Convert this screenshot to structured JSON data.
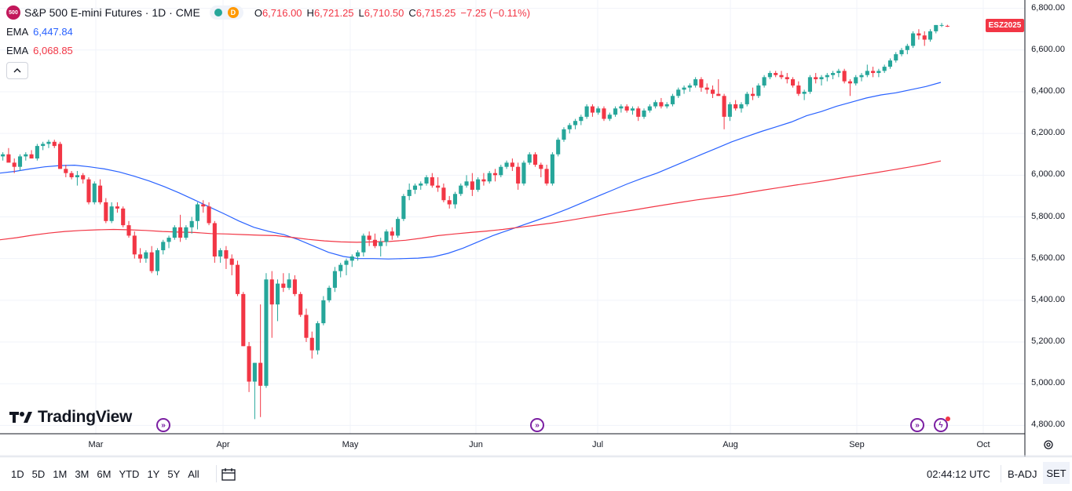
{
  "header": {
    "symbol_badge": "500",
    "title": "S&P 500 E-mini Futures · 1D · CME",
    "status_letter": "D",
    "ohlc": [
      {
        "key": "O",
        "value": "6,716.00"
      },
      {
        "key": "H",
        "value": "6,721.25"
      },
      {
        "key": "L",
        "value": "6,710.50"
      },
      {
        "key": "C",
        "value": "6,715.25"
      }
    ],
    "change": "−7.25 (−0.11%)"
  },
  "indicators": [
    {
      "name": "EMA",
      "value": "6,447.84",
      "color": "#2962ff"
    },
    {
      "name": "EMA",
      "value": "6,068.85",
      "color": "#f23645"
    }
  ],
  "collapse_icon": "chevron-up-icon",
  "contract_tag": "ESZ2025",
  "watermark": "TradingView",
  "colors": {
    "up": "#26a69a",
    "down": "#f23645",
    "ema_fast": "#2962ff",
    "ema_slow": "#f23645",
    "event": "#7b1fa2"
  },
  "chart_data": {
    "type": "candlestick",
    "title": "S&P 500 E-mini Futures · 1D · CME",
    "y_axis": {
      "ticks": [
        "6,800.00",
        "6,600.00",
        "6,400.00",
        "6,200.00",
        "6,000.00",
        "5,800.00",
        "5,600.00",
        "5,400.00",
        "5,200.00",
        "5,000.00",
        "4,800.00"
      ],
      "ylim": [
        4760,
        6840
      ]
    },
    "x_axis": {
      "months": [
        "Mar",
        "Apr",
        "May",
        "Jun",
        "Jul",
        "Aug",
        "Sep",
        "Oct"
      ]
    },
    "grid": true,
    "candles": [
      [
        6090,
        6110,
        6070,
        6100
      ],
      [
        6100,
        6130,
        6080,
        6060
      ],
      [
        6060,
        6080,
        6010,
        6040
      ],
      [
        6040,
        6100,
        6020,
        6090
      ],
      [
        6090,
        6110,
        6070,
        6100
      ],
      [
        6100,
        6120,
        6080,
        6080
      ],
      [
        6080,
        6150,
        6070,
        6140
      ],
      [
        6140,
        6160,
        6120,
        6150
      ],
      [
        6150,
        6170,
        6130,
        6160
      ],
      [
        6160,
        6170,
        6130,
        6140
      ],
      [
        6150,
        6160,
        6030,
        6030
      ],
      [
        6030,
        6050,
        5990,
        6010
      ],
      [
        6010,
        6020,
        5980,
        5990
      ],
      [
        5990,
        6020,
        5950,
        6000
      ],
      [
        6000,
        6010,
        5960,
        5980
      ],
      [
        5980,
        5990,
        5860,
        5870
      ],
      [
        5870,
        5970,
        5860,
        5960
      ],
      [
        5950,
        5980,
        5860,
        5870
      ],
      [
        5870,
        5890,
        5770,
        5780
      ],
      [
        5780,
        5870,
        5770,
        5850
      ],
      [
        5850,
        5870,
        5820,
        5840
      ],
      [
        5840,
        5850,
        5750,
        5760
      ],
      [
        5760,
        5780,
        5700,
        5710
      ],
      [
        5710,
        5730,
        5600,
        5620
      ],
      [
        5620,
        5650,
        5580,
        5600
      ],
      [
        5600,
        5640,
        5580,
        5630
      ],
      [
        5630,
        5660,
        5530,
        5540
      ],
      [
        5540,
        5650,
        5520,
        5640
      ],
      [
        5640,
        5690,
        5620,
        5680
      ],
      [
        5680,
        5710,
        5650,
        5700
      ],
      [
        5700,
        5760,
        5690,
        5750
      ],
      [
        5750,
        5810,
        5680,
        5700
      ],
      [
        5700,
        5760,
        5690,
        5750
      ],
      [
        5750,
        5800,
        5720,
        5780
      ],
      [
        5780,
        5870,
        5740,
        5860
      ],
      [
        5860,
        5880,
        5820,
        5850
      ],
      [
        5850,
        5870,
        5760,
        5770
      ],
      [
        5770,
        5780,
        5580,
        5610
      ],
      [
        5610,
        5650,
        5580,
        5640
      ],
      [
        5640,
        5660,
        5550,
        5600
      ],
      [
        5600,
        5620,
        5520,
        5570
      ],
      [
        5570,
        5590,
        5420,
        5430
      ],
      [
        5430,
        5440,
        5180,
        5180
      ],
      [
        5180,
        5200,
        4960,
        5010
      ],
      [
        5010,
        5100,
        4830,
        5100
      ],
      [
        5100,
        5380,
        4840,
        4990
      ],
      [
        4990,
        5530,
        4980,
        5500
      ],
      [
        5500,
        5540,
        5220,
        5380
      ],
      [
        5380,
        5500,
        5300,
        5480
      ],
      [
        5480,
        5530,
        5440,
        5460
      ],
      [
        5460,
        5530,
        5450,
        5500
      ],
      [
        5500,
        5520,
        5420,
        5430
      ],
      [
        5430,
        5440,
        5320,
        5330
      ],
      [
        5330,
        5360,
        5200,
        5220
      ],
      [
        5220,
        5250,
        5120,
        5160
      ],
      [
        5160,
        5300,
        5140,
        5290
      ],
      [
        5290,
        5420,
        5280,
        5400
      ],
      [
        5400,
        5470,
        5390,
        5460
      ],
      [
        5460,
        5560,
        5440,
        5540
      ],
      [
        5540,
        5580,
        5510,
        5570
      ],
      [
        5570,
        5600,
        5520,
        5590
      ],
      [
        5590,
        5620,
        5560,
        5610
      ],
      [
        5610,
        5640,
        5590,
        5630
      ],
      [
        5630,
        5720,
        5610,
        5710
      ],
      [
        5710,
        5730,
        5660,
        5690
      ],
      [
        5690,
        5720,
        5650,
        5660
      ],
      [
        5660,
        5700,
        5610,
        5680
      ],
      [
        5680,
        5740,
        5660,
        5730
      ],
      [
        5730,
        5750,
        5690,
        5710
      ],
      [
        5710,
        5800,
        5700,
        5790
      ],
      [
        5790,
        5910,
        5780,
        5900
      ],
      [
        5900,
        5960,
        5880,
        5930
      ],
      [
        5930,
        5960,
        5910,
        5950
      ],
      [
        5950,
        5970,
        5930,
        5960
      ],
      [
        5960,
        6000,
        5950,
        5990
      ],
      [
        5990,
        6010,
        5940,
        5950
      ],
      [
        5950,
        5990,
        5920,
        5940
      ],
      [
        5940,
        5960,
        5870,
        5880
      ],
      [
        5880,
        5900,
        5840,
        5860
      ],
      [
        5860,
        5920,
        5840,
        5910
      ],
      [
        5910,
        5960,
        5900,
        5950
      ],
      [
        5950,
        6000,
        5940,
        5970
      ],
      [
        5970,
        6010,
        5900,
        5930
      ],
      [
        5930,
        5990,
        5920,
        5980
      ],
      [
        5980,
        6010,
        5950,
        5970
      ],
      [
        5970,
        6020,
        5960,
        6010
      ],
      [
        6010,
        6030,
        5970,
        6000
      ],
      [
        6000,
        6050,
        5990,
        6040
      ],
      [
        6040,
        6070,
        6030,
        6060
      ],
      [
        6060,
        6080,
        6020,
        6040
      ],
      [
        6040,
        6060,
        5930,
        5960
      ],
      [
        5960,
        6070,
        5950,
        6060
      ],
      [
        6060,
        6110,
        6050,
        6100
      ],
      [
        6100,
        6110,
        6040,
        6050
      ],
      [
        6050,
        6060,
        5990,
        6030
      ],
      [
        6030,
        6050,
        5950,
        5960
      ],
      [
        5960,
        6110,
        5950,
        6100
      ],
      [
        6100,
        6180,
        6090,
        6170
      ],
      [
        6170,
        6230,
        6160,
        6220
      ],
      [
        6220,
        6250,
        6200,
        6240
      ],
      [
        6240,
        6270,
        6220,
        6260
      ],
      [
        6260,
        6290,
        6240,
        6280
      ],
      [
        6280,
        6340,
        6270,
        6330
      ],
      [
        6330,
        6340,
        6280,
        6300
      ],
      [
        6300,
        6330,
        6290,
        6320
      ],
      [
        6320,
        6330,
        6260,
        6270
      ],
      [
        6270,
        6300,
        6260,
        6290
      ],
      [
        6290,
        6330,
        6280,
        6320
      ],
      [
        6320,
        6340,
        6300,
        6330
      ],
      [
        6330,
        6340,
        6300,
        6310
      ],
      [
        6310,
        6330,
        6290,
        6320
      ],
      [
        6320,
        6330,
        6260,
        6280
      ],
      [
        6280,
        6320,
        6270,
        6310
      ],
      [
        6310,
        6340,
        6300,
        6330
      ],
      [
        6330,
        6360,
        6320,
        6350
      ],
      [
        6350,
        6370,
        6320,
        6330
      ],
      [
        6330,
        6350,
        6320,
        6340
      ],
      [
        6340,
        6390,
        6330,
        6380
      ],
      [
        6380,
        6420,
        6370,
        6410
      ],
      [
        6410,
        6430,
        6390,
        6420
      ],
      [
        6420,
        6440,
        6400,
        6430
      ],
      [
        6430,
        6470,
        6420,
        6460
      ],
      [
        6460,
        6470,
        6400,
        6420
      ],
      [
        6420,
        6440,
        6390,
        6410
      ],
      [
        6410,
        6430,
        6370,
        6390
      ],
      [
        6390,
        6460,
        6380,
        6380
      ],
      [
        6380,
        6390,
        6220,
        6280
      ],
      [
        6280,
        6350,
        6260,
        6340
      ],
      [
        6340,
        6360,
        6310,
        6320
      ],
      [
        6320,
        6350,
        6300,
        6340
      ],
      [
        6340,
        6400,
        6330,
        6390
      ],
      [
        6390,
        6420,
        6360,
        6380
      ],
      [
        6380,
        6440,
        6370,
        6430
      ],
      [
        6430,
        6480,
        6420,
        6470
      ],
      [
        6470,
        6500,
        6460,
        6490
      ],
      [
        6490,
        6500,
        6470,
        6480
      ],
      [
        6480,
        6500,
        6460,
        6470
      ],
      [
        6470,
        6490,
        6440,
        6460
      ],
      [
        6460,
        6470,
        6420,
        6430
      ],
      [
        6430,
        6450,
        6380,
        6390
      ],
      [
        6390,
        6410,
        6360,
        6400
      ],
      [
        6400,
        6480,
        6390,
        6470
      ],
      [
        6470,
        6490,
        6440,
        6460
      ],
      [
        6460,
        6480,
        6430,
        6470
      ],
      [
        6470,
        6490,
        6450,
        6480
      ],
      [
        6480,
        6500,
        6460,
        6490
      ],
      [
        6490,
        6510,
        6470,
        6500
      ],
      [
        6500,
        6510,
        6440,
        6450
      ],
      [
        6450,
        6460,
        6380,
        6440
      ],
      [
        6440,
        6480,
        6430,
        6470
      ],
      [
        6470,
        6490,
        6450,
        6480
      ],
      [
        6480,
        6530,
        6470,
        6500
      ],
      [
        6500,
        6520,
        6470,
        6490
      ],
      [
        6490,
        6510,
        6470,
        6500
      ],
      [
        6500,
        6530,
        6490,
        6520
      ],
      [
        6520,
        6560,
        6510,
        6550
      ],
      [
        6550,
        6590,
        6540,
        6580
      ],
      [
        6580,
        6610,
        6570,
        6600
      ],
      [
        6600,
        6630,
        6580,
        6620
      ],
      [
        6620,
        6690,
        6610,
        6680
      ],
      [
        6680,
        6700,
        6650,
        6670
      ],
      [
        6670,
        6690,
        6620,
        6650
      ],
      [
        6650,
        6700,
        6640,
        6690
      ],
      [
        6690,
        6720,
        6680,
        6720
      ],
      [
        6720,
        6730,
        6710,
        6720
      ],
      [
        6716,
        6721.25,
        6710.5,
        6715.25
      ]
    ],
    "series": [
      {
        "name": "EMA",
        "values": [
          6010,
          6018,
          6030,
          6040,
          6046,
          6048,
          6040,
          6030,
          6015,
          5995,
          5972,
          5945,
          5915,
          5882,
          5848,
          5815,
          5780,
          5750,
          5730,
          5715,
          5690,
          5660,
          5630,
          5610,
          5600,
          5600,
          5598,
          5600,
          5602,
          5608,
          5625,
          5650,
          5680,
          5710,
          5735,
          5760,
          5785,
          5810,
          5838,
          5868,
          5898,
          5928,
          5958,
          5985,
          6010,
          6040,
          6070,
          6100,
          6130,
          6160,
          6185,
          6210,
          6232,
          6255,
          6285,
          6305,
          6330,
          6350,
          6370,
          6385,
          6395,
          6410,
          6425,
          6445
        ]
      },
      {
        "name": "EMA",
        "values": [
          5690,
          5700,
          5712,
          5722,
          5730,
          5735,
          5738,
          5740,
          5738,
          5735,
          5730,
          5727,
          5725,
          5720,
          5718,
          5715,
          5712,
          5710,
          5702,
          5692,
          5685,
          5680,
          5678,
          5680,
          5682,
          5688,
          5698,
          5710,
          5718,
          5725,
          5732,
          5740,
          5750,
          5760,
          5770,
          5782,
          5795,
          5808,
          5820,
          5832,
          5845,
          5858,
          5870,
          5882,
          5892,
          5902,
          5915,
          5928,
          5940,
          5952,
          5963,
          5975,
          5988,
          6000,
          6012,
          6025,
          6038,
          6052,
          6068
        ]
      }
    ]
  },
  "time_ranges": [
    "1D",
    "5D",
    "1M",
    "3M",
    "6M",
    "YTD",
    "1Y",
    "5Y",
    "All"
  ],
  "clock": "02:44:12 UTC",
  "adjust_label": "B-ADJ",
  "session_label": "SET"
}
